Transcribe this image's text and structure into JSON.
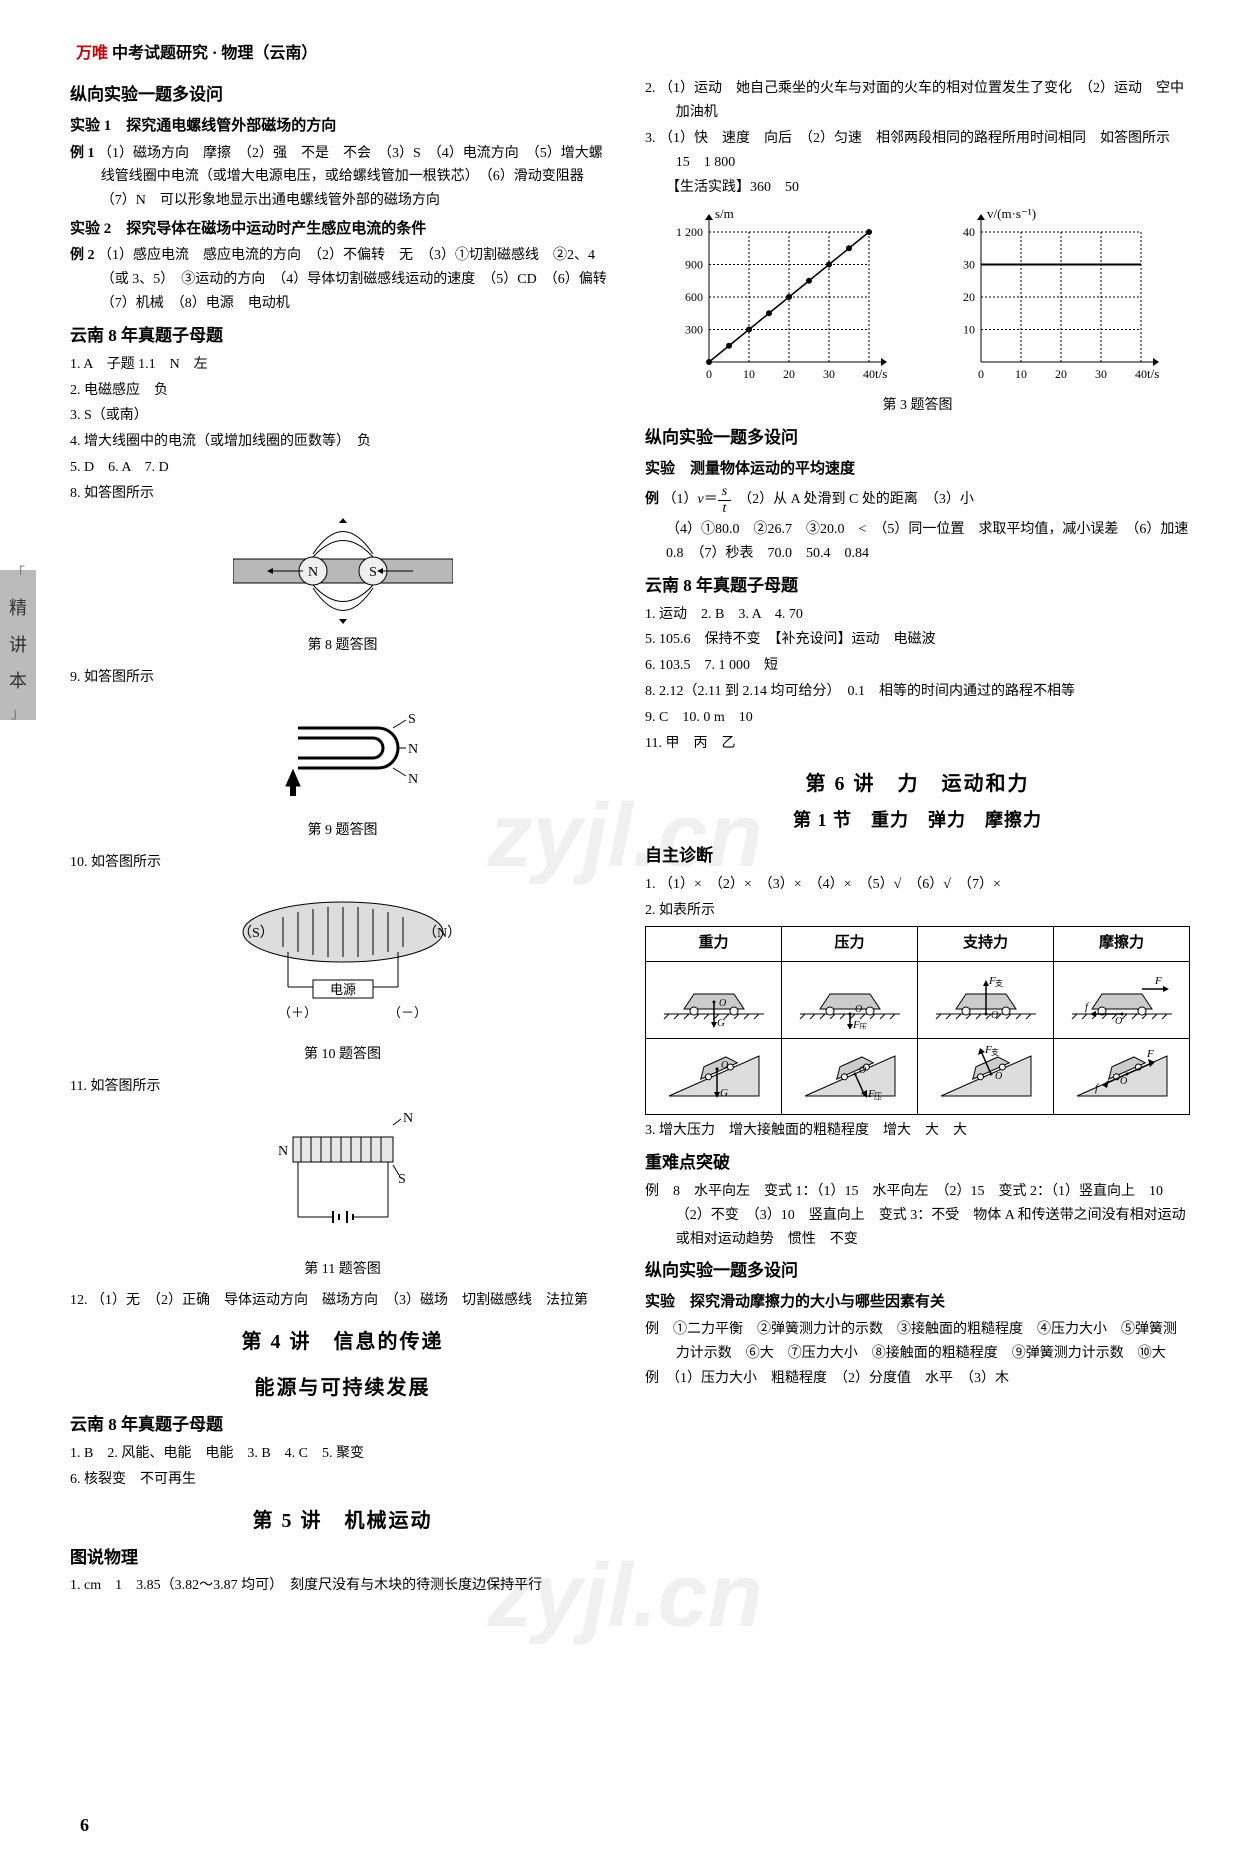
{
  "header": {
    "brand": "万唯",
    "title": "中考试题研究 · 物理（云南）"
  },
  "side_tab": "精讲本",
  "page_num": "6",
  "watermark": "zyjl.cn",
  "left": {
    "h1": "纵向实验一题多设问",
    "exp1_title": "实验 1　探究通电螺线管外部磁场的方向",
    "exp1_ex": "例 1",
    "exp1_body": "（1）磁场方向　摩擦　（2）强　不是　不会　（3）S　（4）电流方向　（5）增大螺线管线圈中电流（或增大电源电压，或给螺线管加一根铁芯）　（6）滑动变阻器　（7）N　可以形象地显示出通电螺线管外部的磁场方向",
    "exp2_title": "实验 2　探究导体在磁场中运动时产生感应电流的条件",
    "exp2_ex": "例 2",
    "exp2_body": "（1）感应电流　感应电流的方向　（2）不偏转　无　（3）①切割磁感线　②2、4（或 3、5）　③运动的方向　（4）导体切割磁感线运动的速度　（5）CD　（6）偏转　（7）机械　（8）电源　电动机",
    "h2": "云南 8 年真题子母题",
    "q1": "1. A　子题 1.1　N　左",
    "q2": "2. 电磁感应　负",
    "q3": "3. S（或南）",
    "q4": "4. 增大线圈中的电流（或增加线圈的匝数等）　负",
    "q5": "5. D　6. A　7. D",
    "q8": "8. 如答图所示",
    "cap8": "第 8 题答图",
    "q9": "9. 如答图所示",
    "cap9": "第 9 题答图",
    "q10": "10. 如答图所示",
    "cap10": "第 10 题答图",
    "q11": "11. 如答图所示",
    "cap11": "第 11 题答图",
    "q12": "12. （1）无　（2）正确　导体运动方向　磁场方向　（3）磁场　切割磁感线　法拉第",
    "ch4_title": "第 4 讲　信息的传递",
    "ch4_sub": "能源与可持续发展",
    "ch4_h": "云南 8 年真题子母题",
    "ch4_l1": "1. B　2. 风能、电能　电能　3. B　4. C　5. 聚变",
    "ch4_l2": "6. 核裂变　不可再生",
    "ch5_title": "第 5 讲　机械运动",
    "ch5_h": "图说物理",
    "ch5_l1": "1. cm　1　3.85（3.82～3.87 均可）　刻度尺没有与木块的待测长度边保持平行",
    "fig8": {
      "N": "N",
      "S": "S"
    },
    "fig9": {
      "S": "S",
      "N1": "N",
      "N2": "N"
    },
    "fig10": {
      "S": "（S）",
      "N": "（N）",
      "label": "电源",
      "plus": "（＋）",
      "minus": "（－）"
    },
    "fig11": {
      "N1": "N",
      "N2": "N",
      "S": "S"
    }
  },
  "right": {
    "q2": "2. （1）运动　她自己乘坐的火车与对面的火车的相对位置发生了变化　（2）运动　空中加油机",
    "q3": "3. （1）快　速度　向后　（2）匀速　相邻两段相同的路程所用时间相同　如答图所示　15　1 800",
    "life": "【生活实践】360　50",
    "cap3": "第 3 题答图",
    "h1": "纵向实验一题多设问",
    "exp_title": "实验　测量物体运动的平均速度",
    "ex_label": "例",
    "ex_l1_pre": "（1）",
    "ex_l1_v": "v",
    "ex_l1_eq": "＝",
    "ex_l1_num": "s",
    "ex_l1_den": "t",
    "ex_l1_post": "　（2）从 A 处滑到 C 处的距离　（3）小",
    "ex_l2": "（4）①80.0　②26.7　③20.0　<　（5）同一位置　求取平均值，减小误差　（6）加速　0.8　（7）秒表　70.0　50.4　0.84",
    "h2": "云南 8 年真题子母题",
    "yq1": "1. 运动　2. B　3. A　4. 70",
    "yq5": "5. 105.6　保持不变　【补充设问】运动　电磁波",
    "yq6": "6. 103.5　7. 1 000　短",
    "yq8": "8. 2.12（2.11 到 2.14 均可给分）　0.1　相等的时间内通过的路程不相等",
    "yq9": "9. C　10. 0 m　10",
    "yq11": "11. 甲　丙　乙",
    "ch6_title": "第 6 讲　力　运动和力",
    "ch6_sec": "第 1 节　重力　弹力　摩擦力",
    "self_h": "自主诊断",
    "self_1": "1. （1）×　（2）×　（3）×　（4）×　（5）√　（6）√　（7）×",
    "self_2": "2. 如表所示",
    "table": {
      "headers": [
        "重力",
        "压力",
        "支持力",
        "摩擦力"
      ]
    },
    "self_3": "3. 增大压力　增大接触面的粗糙程度　增大　大　大",
    "hard_h": "重难点突破",
    "hard_ex": "例　8　水平向左　变式 1：（1）15　水平向左　（2）15　变式 2：（1）竖直向上　10　（2）不变　（3）10　竖直向上　变式 3：不受　物体 A 和传送带之间没有相对运动或相对运动趋势　惯性　不变",
    "nexp_h": "纵向实验一题多设问",
    "nexp_title": "实验　探究滑动摩擦力的大小与哪些因素有关",
    "nexp_ex": "例　①二力平衡　②弹簧测力计的示数　③接触面的粗糙程度　④压力大小　⑤弹簧测力计示数　⑥大　⑦压力大小　⑧接触面的粗糙程度　⑨弹簧测力计示数　⑩大",
    "nexp_ex2": "例　（1）压力大小　粗糙程度　（2）分度值　水平　（3）木",
    "chart1": {
      "ylabel": "s/m",
      "xlabel": "t/s",
      "ymax": 1200,
      "ystep": 300,
      "yticks": [
        "300",
        "600",
        "900",
        "1 200"
      ],
      "xmax": 40,
      "xticks": [
        "0",
        "10",
        "20",
        "30",
        "40"
      ],
      "line_color": "#000000",
      "points": [
        [
          0,
          0
        ],
        [
          5,
          150
        ],
        [
          10,
          300
        ],
        [
          15,
          450
        ],
        [
          20,
          600
        ],
        [
          25,
          750
        ],
        [
          30,
          900
        ],
        [
          35,
          1050
        ],
        [
          40,
          1200
        ]
      ]
    },
    "chart2": {
      "ylabel": "v/(m·s⁻¹)",
      "xlabel": "t/s",
      "ymax": 40,
      "ystep": 10,
      "yticks": [
        "10",
        "20",
        "30",
        "40"
      ],
      "xmax": 40,
      "xticks": [
        "0",
        "10",
        "20",
        "30",
        "40"
      ],
      "hline_y": 30,
      "line_color": "#000000"
    }
  }
}
